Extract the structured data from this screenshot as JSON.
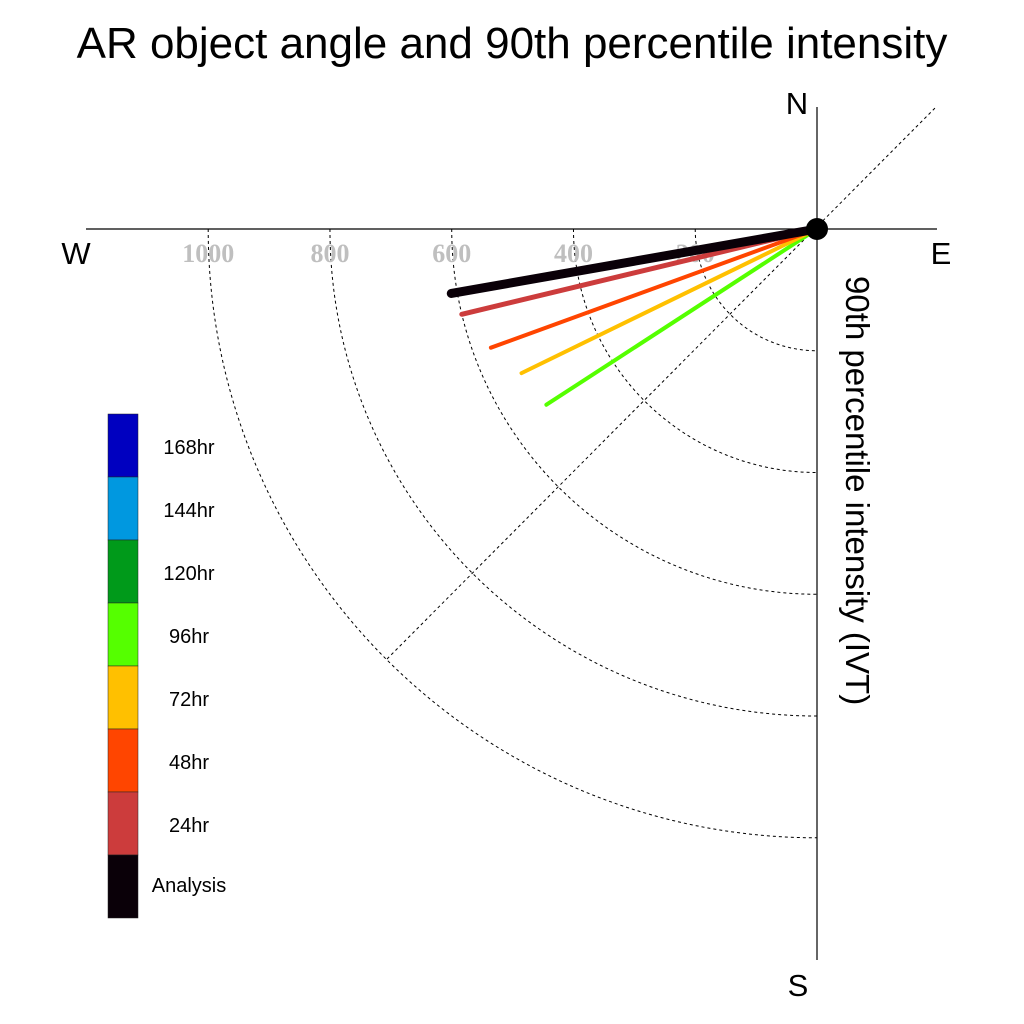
{
  "chart_data": {
    "type": "polar-quadrant",
    "title": "AR object angle and 90th percentile intensity",
    "radial_label": "90th percentile intensity (IVT)",
    "compass": {
      "north": "N",
      "south": "S",
      "east": "E",
      "west": "W"
    },
    "radial_ticks": [
      {
        "value": 200,
        "label": "200"
      },
      {
        "value": 400,
        "label": "400"
      },
      {
        "value": 600,
        "label": "600"
      },
      {
        "value": 800,
        "label": "800"
      },
      {
        "value": 1000,
        "label": "1000"
      }
    ],
    "r_max": 1150,
    "grid": true,
    "series": [
      {
        "name": "Analysis",
        "color": "#0a0008",
        "intensity": 610,
        "angle_below_west_deg": 10,
        "width": 9
      },
      {
        "name": "24hr",
        "color": "#cc3c3c",
        "intensity": 600,
        "angle_below_west_deg": 13.5,
        "width": 5
      },
      {
        "name": "48hr",
        "color": "#ff4500",
        "intensity": 570,
        "angle_below_west_deg": 20,
        "width": 4
      },
      {
        "name": "72hr",
        "color": "#ffc000",
        "intensity": 540,
        "angle_below_west_deg": 26,
        "width": 4
      },
      {
        "name": "96hr",
        "color": "#55ff00",
        "intensity": 530,
        "angle_below_west_deg": 33,
        "width": 4
      }
    ],
    "legend": {
      "placement": "left",
      "entries": [
        {
          "label": "168hr",
          "color": "#0000c0"
        },
        {
          "label": "144hr",
          "color": "#0098e0"
        },
        {
          "label": "120hr",
          "color": "#009a1a"
        },
        {
          "label": "96hr",
          "color": "#55ff00"
        },
        {
          "label": "72hr",
          "color": "#ffc000"
        },
        {
          "label": "48hr",
          "color": "#ff4500"
        },
        {
          "label": "24hr",
          "color": "#cc3c3c"
        },
        {
          "label": "Analysis",
          "color": "#0a0008"
        }
      ]
    }
  }
}
